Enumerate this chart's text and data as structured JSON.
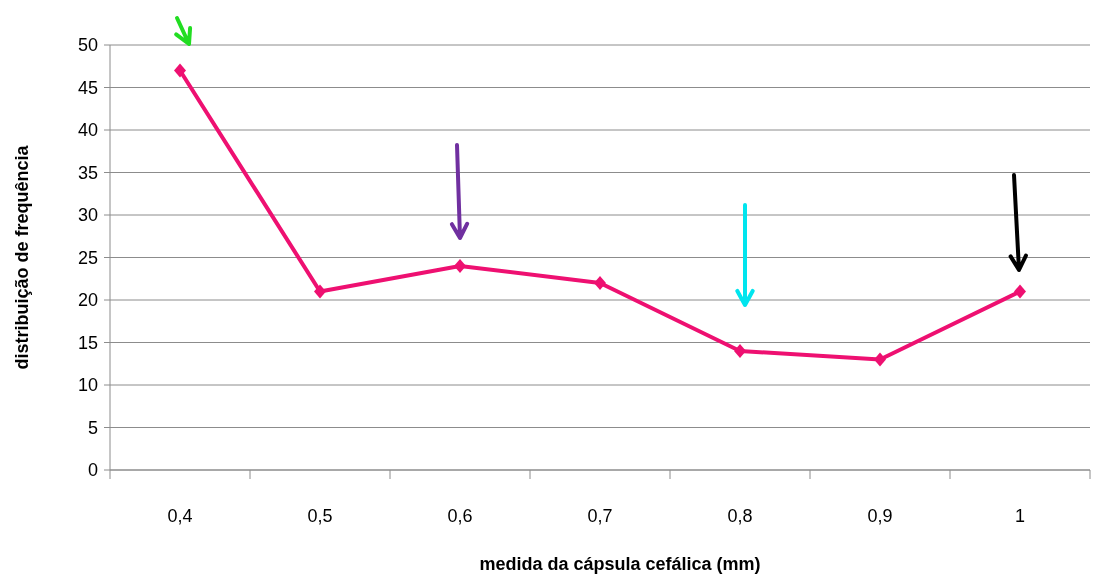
{
  "chart_data": {
    "type": "line",
    "xlabel": "medida da cápsula cefálica (mm)",
    "ylabel": "distribuição de frequência",
    "categories": [
      "0,4",
      "0,5",
      "0,6",
      "0,7",
      "0,8",
      "0,9",
      "1"
    ],
    "series": [
      {
        "color": "#ee1071",
        "values": [
          47,
          21,
          24,
          22,
          14,
          13,
          21
        ]
      }
    ],
    "ylim": [
      0,
      50
    ],
    "yticks": [
      0,
      5,
      10,
      15,
      20,
      25,
      30,
      35,
      40,
      45,
      50
    ],
    "grid": "y",
    "marker": "diamond",
    "line_style": "solid"
  }
}
